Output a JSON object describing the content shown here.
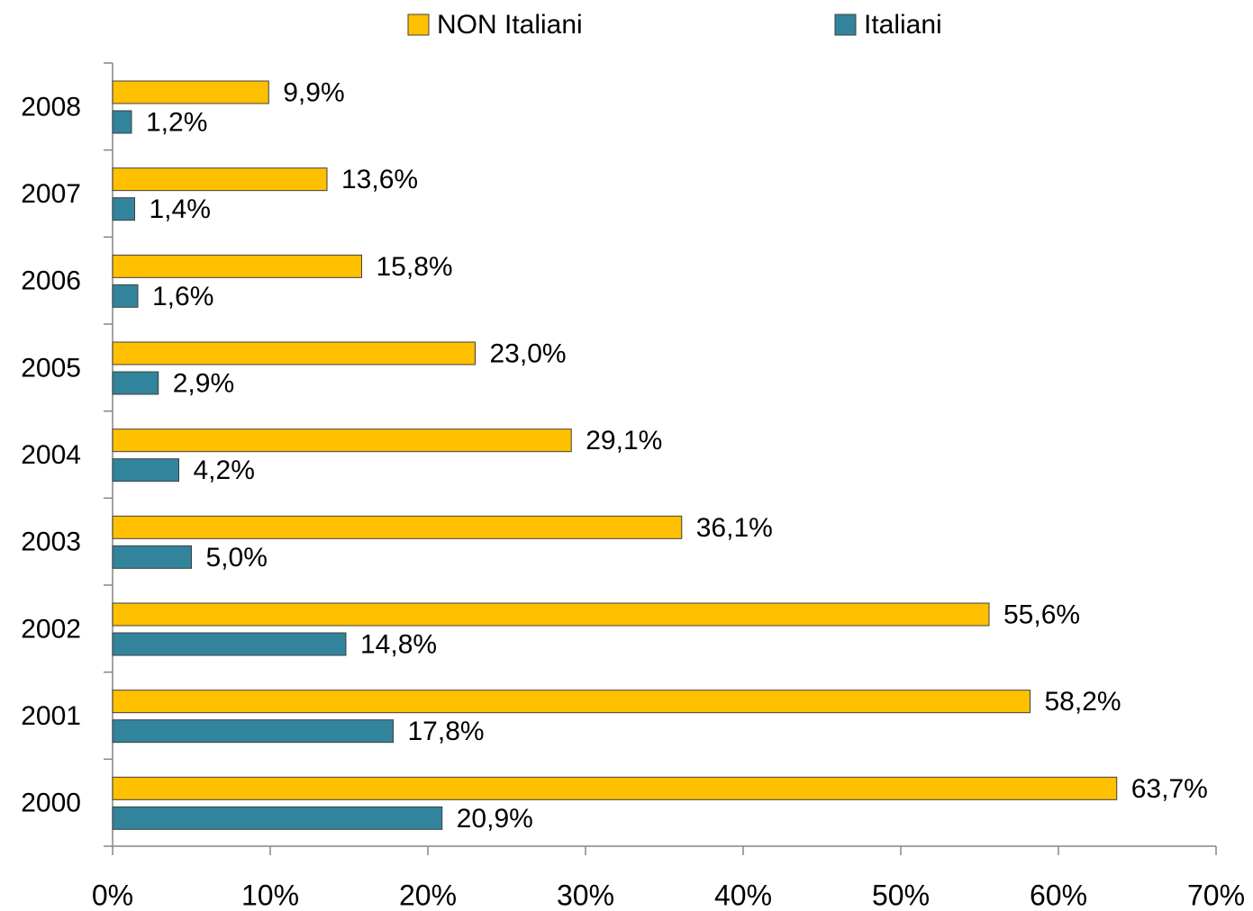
{
  "chart_data": {
    "type": "barh",
    "categories": [
      "2008",
      "2007",
      "2006",
      "2005",
      "2004",
      "2003",
      "2002",
      "2001",
      "2000"
    ],
    "series": [
      {
        "name": "NON Italiani",
        "color": "#FFC000",
        "values": [
          9.9,
          13.6,
          15.8,
          23.0,
          29.1,
          36.1,
          55.6,
          58.2,
          63.7
        ],
        "value_labels": [
          "9,9%",
          "13,6%",
          "15,8%",
          "23,0%",
          "29,1%",
          "36,1%",
          "55,6%",
          "58,2%",
          "63,7%"
        ]
      },
      {
        "name": "Italiani",
        "color": "#31849B",
        "values": [
          1.2,
          1.4,
          1.6,
          2.9,
          4.2,
          5.0,
          14.8,
          17.8,
          20.9
        ],
        "value_labels": [
          "1,2%",
          "1,4%",
          "1,6%",
          "2,9%",
          "4,2%",
          "5,0%",
          "14,8%",
          "17,8%",
          "20,9%"
        ]
      }
    ],
    "xlim": [
      0,
      70
    ],
    "xticks": [
      {
        "value": 0,
        "label": "0%"
      },
      {
        "value": 10,
        "label": "10%"
      },
      {
        "value": 20,
        "label": "20%"
      },
      {
        "value": 30,
        "label": "30%"
      },
      {
        "value": 40,
        "label": "40%"
      },
      {
        "value": 50,
        "label": "50%"
      },
      {
        "value": 60,
        "label": "60%"
      },
      {
        "value": 70,
        "label": "70%"
      }
    ],
    "legend": "top"
  }
}
